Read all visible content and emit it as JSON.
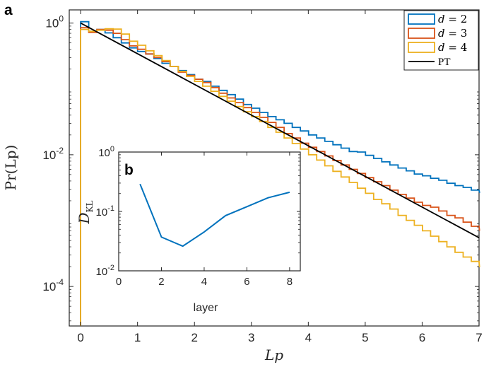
{
  "chart_data": [
    {
      "panel": "a",
      "type": "line",
      "xlabel": "Lp",
      "ylabel": "Pr(Lp)",
      "xlim": [
        -0.2,
        7
      ],
      "ylim_log10": [
        -4.6,
        0.2
      ],
      "yscale": "log",
      "x_ticks": [
        0,
        1,
        2,
        3,
        4,
        5,
        6,
        7
      ],
      "x_tick_labels": [
        "0",
        "1",
        "2",
        "3",
        "4",
        "5",
        "6",
        "7"
      ],
      "y_ticks": [
        1,
        0.01,
        0.0001
      ],
      "y_tick_labels": [
        {
          "base": "10",
          "exp": "0"
        },
        {
          "base": "10",
          "exp": "-2"
        },
        {
          "base": "10",
          "exp": "-4"
        }
      ],
      "bin_width": 0.143,
      "series": [
        {
          "name": "d = 2",
          "label_var": "d",
          "label_val": "= 2",
          "color": "#0072BD",
          "style": "stairs",
          "values": [
            1.05,
            0.75,
            0.8,
            0.71,
            0.6,
            0.5,
            0.42,
            0.37,
            0.34,
            0.29,
            0.245,
            0.22,
            0.19,
            0.165,
            0.14,
            0.13,
            0.11,
            0.095,
            0.082,
            0.07,
            0.058,
            0.051,
            0.044,
            0.038,
            0.034,
            0.03,
            0.026,
            0.023,
            0.02,
            0.018,
            0.016,
            0.0142,
            0.0126,
            0.0112,
            0.011,
            0.0098,
            0.0088,
            0.0078,
            0.007,
            0.0063,
            0.0057,
            0.0051,
            0.0048,
            0.0044,
            0.0041,
            0.0037,
            0.0034,
            0.0032,
            0.0029,
            0.0027
          ]
        },
        {
          "name": "d = 3",
          "label_var": "d",
          "label_val": "= 3",
          "color": "#D95319",
          "style": "stairs",
          "values": [
            0.85,
            0.72,
            0.8,
            0.78,
            0.7,
            0.56,
            0.45,
            0.4,
            0.34,
            0.3,
            0.26,
            0.22,
            0.18,
            0.16,
            0.14,
            0.125,
            0.105,
            0.086,
            0.073,
            0.062,
            0.052,
            0.044,
            0.037,
            0.031,
            0.026,
            0.021,
            0.018,
            0.015,
            0.013,
            0.0112,
            0.0096,
            0.0082,
            0.007,
            0.006,
            0.0052,
            0.0045,
            0.0039,
            0.0034,
            0.0029,
            0.0025,
            0.0022,
            0.0019,
            0.0017,
            0.0016,
            0.0014,
            0.0012,
            0.0011,
            0.00095,
            0.00082,
            0.00072
          ]
        },
        {
          "name": "d = 4",
          "label_var": "d",
          "label_val": "= 4",
          "color": "#EDB120",
          "style": "stairs",
          "values": [
            0.8,
            0.75,
            0.78,
            0.82,
            0.81,
            0.68,
            0.53,
            0.46,
            0.38,
            0.32,
            0.27,
            0.22,
            0.185,
            0.155,
            0.13,
            0.11,
            0.092,
            0.077,
            0.065,
            0.054,
            0.045,
            0.038,
            0.032,
            0.026,
            0.022,
            0.018,
            0.0148,
            0.0122,
            0.01,
            0.0083,
            0.0068,
            0.0056,
            0.0046,
            0.0038,
            0.0031,
            0.0026,
            0.0021,
            0.0018,
            0.0015,
            0.0012,
            0.00101,
            0.00085,
            0.0007,
            0.00058,
            0.00048,
            0.0004,
            0.00033,
            0.00028,
            0.00024,
            0.0002
          ]
        },
        {
          "name": "PT",
          "label_var": "",
          "label_val": "PT",
          "color": "#000000",
          "style": "line",
          "x": [
            0,
            7
          ],
          "y": [
            1.0,
            0.00055
          ]
        }
      ]
    },
    {
      "panel": "b",
      "type": "line",
      "xlabel": "layer",
      "ylabel": "D_KL",
      "ylabel_main": "D",
      "ylabel_sub": "KL",
      "xlim": [
        0,
        8.5
      ],
      "ylim_log10": [
        -2,
        0
      ],
      "yscale": "log",
      "x_ticks": [
        0,
        2,
        4,
        6,
        8
      ],
      "x_tick_labels": [
        "0",
        "2",
        "4",
        "6",
        "8"
      ],
      "y_ticks": [
        1,
        0.1,
        0.01
      ],
      "y_tick_labels": [
        {
          "base": "10",
          "exp": "0"
        },
        {
          "base": "10",
          "exp": "-1"
        },
        {
          "base": "10",
          "exp": "-2"
        }
      ],
      "series": [
        {
          "name": "D_KL",
          "color": "#0072BD",
          "x": [
            1,
            2,
            3,
            4,
            5,
            6,
            7,
            8
          ],
          "y": [
            0.29,
            0.037,
            0.026,
            0.045,
            0.085,
            0.12,
            0.17,
            0.21
          ]
        }
      ]
    }
  ]
}
